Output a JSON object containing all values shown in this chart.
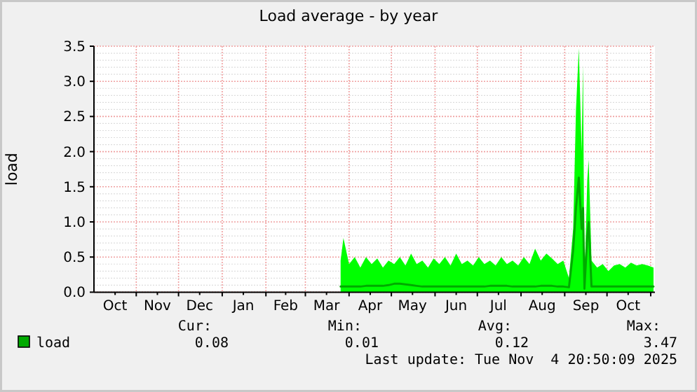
{
  "chart_data": {
    "type": "line",
    "title": "Load average - by year",
    "ylabel": "load",
    "xlim": [
      "2024-10-02",
      "2025-11-04"
    ],
    "ylim": [
      0,
      3.5
    ],
    "xticks": [
      {
        "value": "2024-10-17",
        "label": "Oct"
      },
      {
        "value": "2024-11-01",
        "label": null
      },
      {
        "value": "2024-11-16",
        "label": "Nov"
      },
      {
        "value": "2024-12-01",
        "label": null
      },
      {
        "value": "2024-12-16",
        "label": "Dec"
      },
      {
        "value": "2025-01-01",
        "label": null
      },
      {
        "value": "2025-01-16",
        "label": "Jan"
      },
      {
        "value": "2025-02-01",
        "label": null
      },
      {
        "value": "2025-02-15",
        "label": "Feb"
      },
      {
        "value": "2025-03-01",
        "label": null
      },
      {
        "value": "2025-03-16",
        "label": "Mar"
      },
      {
        "value": "2025-04-01",
        "label": null
      },
      {
        "value": "2025-04-16",
        "label": "Apr"
      },
      {
        "value": "2025-05-01",
        "label": null
      },
      {
        "value": "2025-05-16",
        "label": "May"
      },
      {
        "value": "2025-06-01",
        "label": null
      },
      {
        "value": "2025-06-16",
        "label": "Jun"
      },
      {
        "value": "2025-07-01",
        "label": null
      },
      {
        "value": "2025-07-16",
        "label": "Jul"
      },
      {
        "value": "2025-08-01",
        "label": null
      },
      {
        "value": "2025-08-16",
        "label": "Aug"
      },
      {
        "value": "2025-09-01",
        "label": null
      },
      {
        "value": "2025-09-16",
        "label": "Sep"
      },
      {
        "value": "2025-10-01",
        "label": null
      },
      {
        "value": "2025-10-16",
        "label": "Oct"
      },
      {
        "value": "2025-11-01",
        "label": null
      }
    ],
    "yticks": [
      {
        "value": 0,
        "label": "0.0"
      },
      {
        "value": 0.1,
        "label": null
      },
      {
        "value": 0.2,
        "label": null
      },
      {
        "value": 0.3,
        "label": null
      },
      {
        "value": 0.4,
        "label": null
      },
      {
        "value": 0.5,
        "label": "0.5"
      },
      {
        "value": 0.6,
        "label": null
      },
      {
        "value": 0.7,
        "label": null
      },
      {
        "value": 0.8,
        "label": null
      },
      {
        "value": 0.9,
        "label": null
      },
      {
        "value": 1,
        "label": "1.0"
      },
      {
        "value": 1.1,
        "label": null
      },
      {
        "value": 1.2,
        "label": null
      },
      {
        "value": 1.3,
        "label": null
      },
      {
        "value": 1.4,
        "label": null
      },
      {
        "value": 1.5,
        "label": "1.5"
      },
      {
        "value": 1.6,
        "label": null
      },
      {
        "value": 1.7,
        "label": null
      },
      {
        "value": 1.8,
        "label": null
      },
      {
        "value": 1.9,
        "label": null
      },
      {
        "value": 2,
        "label": "2.0"
      },
      {
        "value": 2.1,
        "label": null
      },
      {
        "value": 2.2,
        "label": null
      },
      {
        "value": 2.3,
        "label": null
      },
      {
        "value": 2.4,
        "label": null
      },
      {
        "value": 2.5,
        "label": "2.5"
      },
      {
        "value": 2.6,
        "label": null
      },
      {
        "value": 2.7,
        "label": null
      },
      {
        "value": 2.8,
        "label": null
      },
      {
        "value": 2.9,
        "label": null
      },
      {
        "value": 3,
        "label": "3.0"
      },
      {
        "value": 3.1,
        "label": null
      },
      {
        "value": 3.2,
        "label": null
      },
      {
        "value": 3.3,
        "label": null
      },
      {
        "value": 3.4,
        "label": null
      },
      {
        "value": 3.5,
        "label": "3.5"
      }
    ],
    "grid": true,
    "legend": "bottom",
    "line_style": "solid",
    "marker": "none",
    "series": [
      {
        "name": "load",
        "color": "#00aa00",
        "x": [
          "2025-03-26",
          "2025-03-28",
          "2025-04-01",
          "2025-04-05",
          "2025-04-09",
          "2025-04-13",
          "2025-04-17",
          "2025-04-21",
          "2025-04-25",
          "2025-04-29",
          "2025-05-03",
          "2025-05-07",
          "2025-05-11",
          "2025-05-15",
          "2025-05-19",
          "2025-05-23",
          "2025-05-27",
          "2025-05-31",
          "2025-06-04",
          "2025-06-08",
          "2025-06-12",
          "2025-06-16",
          "2025-06-20",
          "2025-06-24",
          "2025-06-28",
          "2025-07-02",
          "2025-07-06",
          "2025-07-10",
          "2025-07-14",
          "2025-07-18",
          "2025-07-22",
          "2025-07-26",
          "2025-07-30",
          "2025-08-03",
          "2025-08-07",
          "2025-08-11",
          "2025-08-15",
          "2025-08-19",
          "2025-08-23",
          "2025-08-27",
          "2025-08-31",
          "2025-09-04",
          "2025-09-07",
          "2025-09-09",
          "2025-09-11",
          "2025-09-13",
          "2025-09-14",
          "2025-09-15",
          "2025-09-17",
          "2025-09-18",
          "2025-09-20",
          "2025-09-24",
          "2025-09-28",
          "2025-10-02",
          "2025-10-06",
          "2025-10-10",
          "2025-10-14",
          "2025-10-18",
          "2025-10-22",
          "2025-10-26",
          "2025-10-30",
          "2025-11-03"
        ],
        "values": [
          0.08,
          0.08,
          0.08,
          0.08,
          0.08,
          0.09,
          0.09,
          0.09,
          0.09,
          0.1,
          0.12,
          0.12,
          0.11,
          0.1,
          0.09,
          0.08,
          0.08,
          0.08,
          0.08,
          0.08,
          0.08,
          0.08,
          0.08,
          0.08,
          0.08,
          0.08,
          0.08,
          0.09,
          0.09,
          0.09,
          0.09,
          0.08,
          0.08,
          0.08,
          0.08,
          0.08,
          0.09,
          0.09,
          0.09,
          0.08,
          0.08,
          0.07,
          0.6,
          1.2,
          1.63,
          0.9,
          1.2,
          0.05,
          0.8,
          1.0,
          0.08,
          0.08,
          0.08,
          0.08,
          0.08,
          0.08,
          0.08,
          0.08,
          0.08,
          0.08,
          0.08,
          0.08
        ],
        "lower": [
          0,
          0,
          0,
          0,
          0,
          0,
          0,
          0,
          0,
          0,
          0,
          0,
          0,
          0,
          0,
          0,
          0,
          0,
          0,
          0,
          0,
          0,
          0,
          0,
          0,
          0,
          0,
          0,
          0,
          0,
          0,
          0,
          0,
          0,
          0,
          0,
          0,
          0,
          0,
          0,
          0,
          0,
          0,
          0,
          0,
          0,
          0,
          0,
          0,
          0,
          0,
          0,
          0,
          0,
          0,
          0,
          0,
          0,
          0,
          0,
          0,
          0
        ],
        "upper": [
          0.45,
          0.77,
          0.4,
          0.5,
          0.35,
          0.5,
          0.4,
          0.48,
          0.35,
          0.45,
          0.4,
          0.5,
          0.38,
          0.55,
          0.4,
          0.45,
          0.35,
          0.48,
          0.4,
          0.5,
          0.38,
          0.55,
          0.4,
          0.45,
          0.38,
          0.5,
          0.4,
          0.45,
          0.38,
          0.5,
          0.4,
          0.45,
          0.38,
          0.5,
          0.4,
          0.62,
          0.45,
          0.55,
          0.48,
          0.4,
          0.45,
          0.2,
          0.9,
          2.6,
          3.47,
          2.0,
          3.23,
          0.1,
          1.6,
          1.89,
          0.45,
          0.35,
          0.4,
          0.3,
          0.38,
          0.4,
          0.35,
          0.42,
          0.38,
          0.4,
          0.38,
          0.35
        ]
      }
    ],
    "annotations": [
      "Cur:",
      "Min:",
      "Avg:",
      "Max:",
      "0.08",
      "0.01",
      "0.12",
      "3.47",
      "Last update: Tue Nov  4 20:50:09 2025"
    ]
  }
}
